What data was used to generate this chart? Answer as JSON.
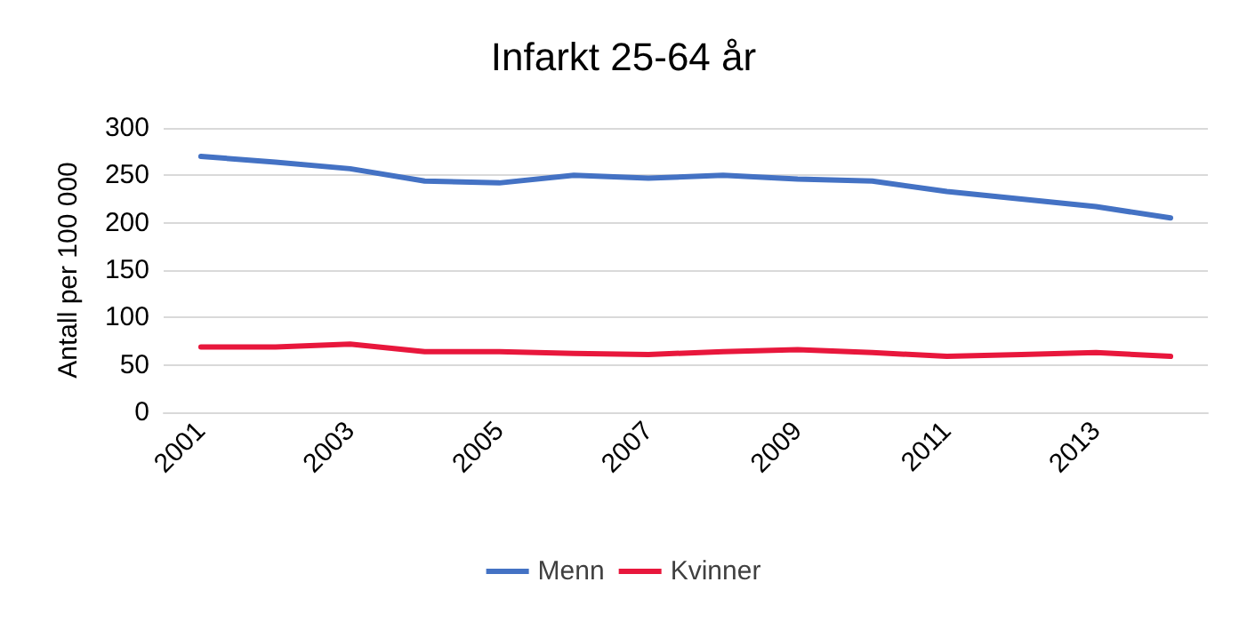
{
  "chart_data": {
    "type": "line",
    "title": "Infarkt 25-64 år",
    "ylabel": "Antall per 100 000",
    "categories": [
      "2001",
      null,
      "2003",
      null,
      "2005",
      null,
      "2007",
      null,
      "2009",
      null,
      "2011",
      null,
      "2013",
      null
    ],
    "series": [
      {
        "name": "Menn",
        "color": "#4472c4",
        "values": [
          270,
          264,
          257,
          244,
          242,
          250,
          247,
          250,
          246,
          244,
          233,
          225,
          217,
          205
        ]
      },
      {
        "name": "Kvinner",
        "color": "#e8173c",
        "values": [
          69,
          69,
          72,
          64,
          64,
          62,
          61,
          64,
          66,
          63,
          59,
          61,
          63,
          59
        ]
      }
    ],
    "ylim": [
      0,
      300
    ],
    "yticks": [
      0,
      50,
      100,
      150,
      200,
      250,
      300
    ],
    "grid": "y",
    "legend": "bottom",
    "marker": "none",
    "line_style": "solid"
  }
}
